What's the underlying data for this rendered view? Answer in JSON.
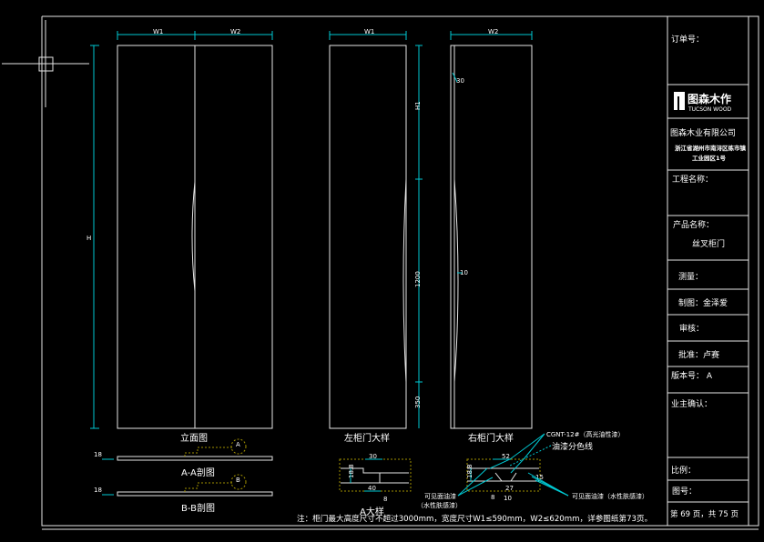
{
  "title_block": {
    "order_no": "订单号：",
    "logo_cn": "图森木作",
    "logo_en": "TUCSON WOOD",
    "company": "图森木业有限公司",
    "address_line1": "浙江省湖州市南浔区练市镇",
    "address_line2": "工业园区1号",
    "project_name": "工程名称：",
    "product_label": "产品名称：",
    "product_value": "丝叉柜门",
    "measure": "测量：",
    "drawn": "制图：金泽爱",
    "review": "审核：",
    "approve": "批准：卢赛",
    "version": "版本号：  A",
    "owner_confirm": "业主确认：",
    "scale": "比例：",
    "drawing_no": "图号：",
    "page": "第 69 页，共 75 页"
  },
  "drawing": {
    "elevation": {
      "label": "立面图",
      "w1": "W1",
      "w2": "W2",
      "h": "H"
    },
    "left_door": {
      "label": "左柜门大样",
      "w": "W1",
      "dim1": "H1",
      "dim2": "1200",
      "dim3": "350"
    },
    "right_door": {
      "label": "右柜门大样",
      "w": "W2",
      "dim1": "30",
      "dim2": "10"
    },
    "section_aa": {
      "label": "A-A剖图",
      "marker": "A",
      "dim": "18"
    },
    "section_bb": {
      "label": "B-B剖图",
      "marker": "B",
      "dim": "18"
    },
    "detail_a": {
      "label": "A大样",
      "dim_top": "30",
      "dim_left": "18.8",
      "dim_bottom": "40",
      "dim_small": "8"
    },
    "detail_b": {
      "dim_top": "52",
      "dim_left": "18.8",
      "dim_right": "15",
      "dim_b1": "8",
      "dim_b2": "27",
      "dim_b3": "10"
    },
    "callouts": {
      "cgnt": "CGNT-12#（高光油性漆）",
      "paint_line": "油漆分色线",
      "visible_left_1": "可见面油漆",
      "visible_left_2": "（水性肤感漆）",
      "visible_right": "可见面油漆（水性肤感漆）"
    },
    "note": "注：柜门最大高度尺寸不超过3000mm，宽度尺寸W1≤590mm，W2≤620mm，详参图纸第73页。"
  },
  "colors": {
    "background": "#000000",
    "lines": "#e6e6e6",
    "dimensions": "#00c8d2",
    "hidden": "#a09000"
  }
}
